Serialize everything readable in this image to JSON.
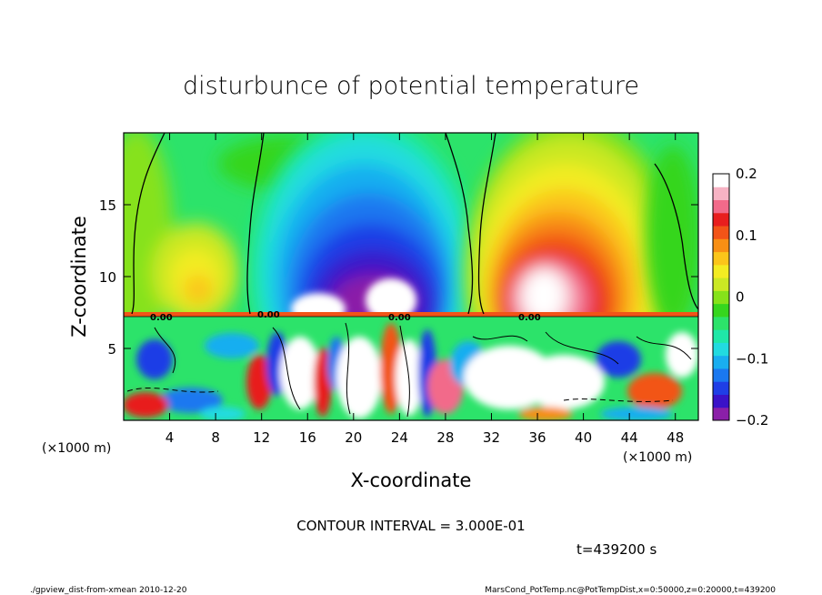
{
  "chart_data": {
    "type": "heatmap",
    "title": "disturbunce of potential temperature",
    "xlabel": "X-coordinate",
    "ylabel": "Z-coordinate",
    "x_unit": "(×1000 m)",
    "y_unit": "(×1000 m)",
    "xlim": [
      0,
      50
    ],
    "ylim": [
      0,
      20
    ],
    "x_ticks": [
      4,
      8,
      12,
      16,
      20,
      24,
      28,
      32,
      36,
      40,
      44,
      48
    ],
    "y_ticks": [
      5,
      10,
      15
    ],
    "colorbar": {
      "min": -0.2,
      "max": 0.2,
      "ticks": [
        {
          "value": 0.2,
          "label": "0.2"
        },
        {
          "value": 0.1,
          "label": "0.1"
        },
        {
          "value": 0.0,
          "label": "0"
        },
        {
          "value": -0.1,
          "label": "−0.1"
        },
        {
          "value": -0.2,
          "label": "−0.2"
        }
      ],
      "colors": [
        "#8b1fa8",
        "#3a12c8",
        "#1f3ee6",
        "#1a78f0",
        "#19aef0",
        "#22dbe0",
        "#1fe8a8",
        "#2ce36a",
        "#36d61e",
        "#86e21a",
        "#cbe824",
        "#f3ec22",
        "#fbc51a",
        "#f88f14",
        "#f25418",
        "#e81e1e",
        "#f26a8a",
        "#f7b3c4",
        "#ffffff"
      ]
    },
    "features": {
      "boundary_layer_top_z": 7.5,
      "cold_dome": {
        "x_center": 22,
        "z_center": 10,
        "min_value": -0.2
      },
      "warm_dome": {
        "x_center": 36.5,
        "z_center": 11,
        "max_value": 0.2
      },
      "contour_label": "0.00"
    }
  },
  "annotations": {
    "contour_interval": "CONTOUR INTERVAL = 3.000E-01",
    "time": "t=439200 s",
    "footer_left": "./gpview_dist-from-xmean  2010-12-20",
    "footer_right": "MarsCond_PotTemp.nc@PotTempDist,x=0:50000,z=0:20000,t=439200"
  }
}
